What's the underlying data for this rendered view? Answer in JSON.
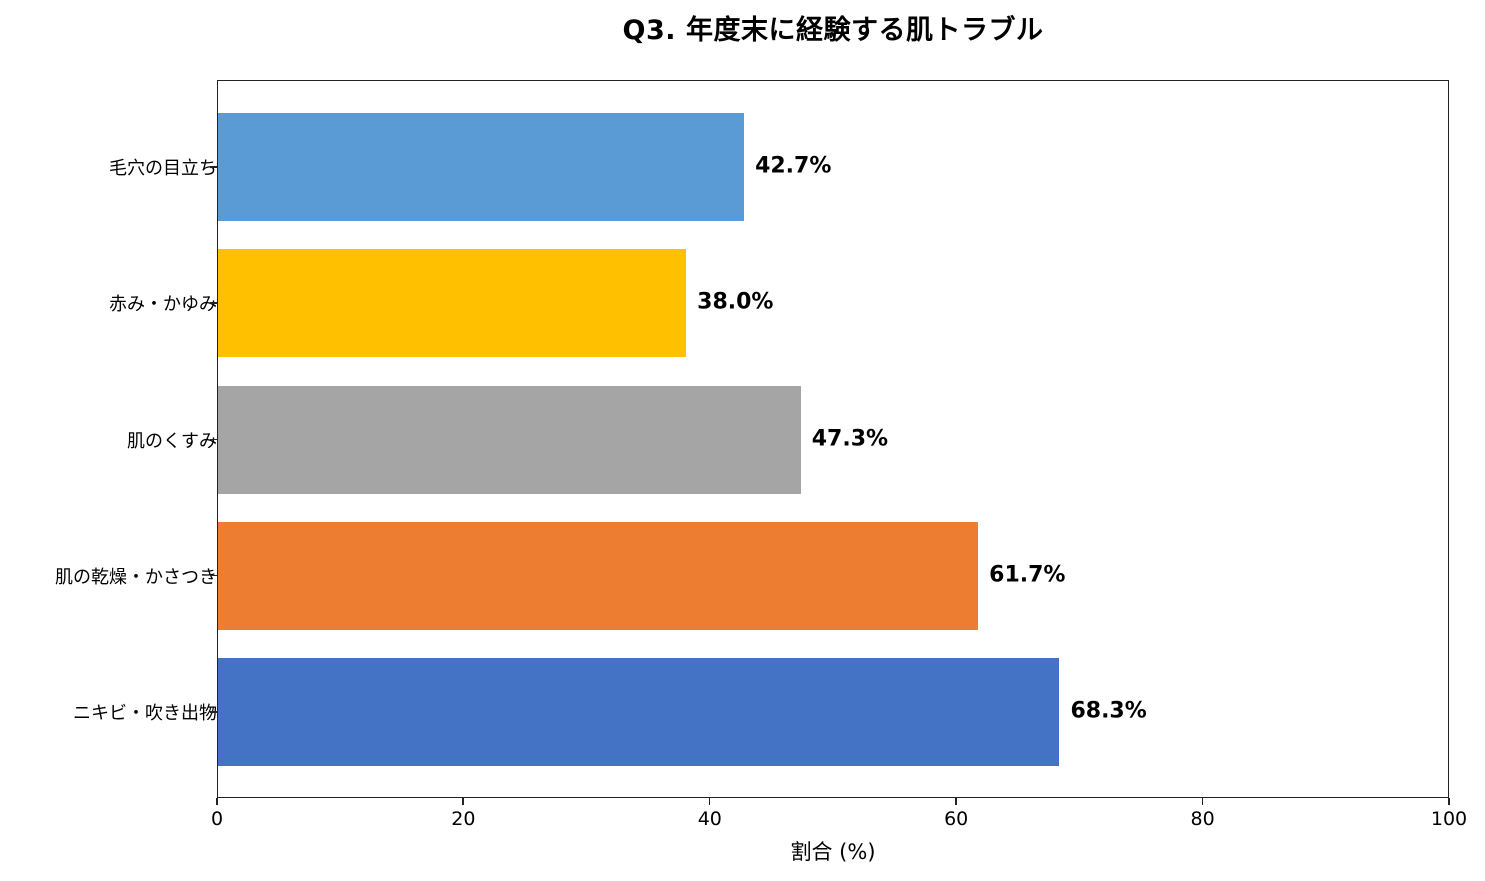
{
  "chart_data": {
    "type": "bar",
    "orientation": "horizontal",
    "title": "Q3. 年度末に経験する肌トラブル",
    "xlabel": "割合 (%)",
    "ylabel": "",
    "xlim": [
      0,
      100
    ],
    "xticks": [
      "0",
      "20",
      "40",
      "60",
      "80",
      "100"
    ],
    "grid": false,
    "legend": null,
    "categories": [
      "毛穴の目立ち",
      "赤み・かゆみ",
      "肌のくすみ",
      "肌の乾燥・かさつき",
      "ニキビ・吹き出物"
    ],
    "values": [
      42.7,
      38.0,
      47.3,
      61.7,
      68.3
    ],
    "value_labels": [
      "42.7%",
      "38.0%",
      "47.3%",
      "61.7%",
      "68.3%"
    ],
    "colors": [
      "#5b9bd5",
      "#ffc000",
      "#a5a5a5",
      "#ed7d31",
      "#4472c4"
    ]
  }
}
